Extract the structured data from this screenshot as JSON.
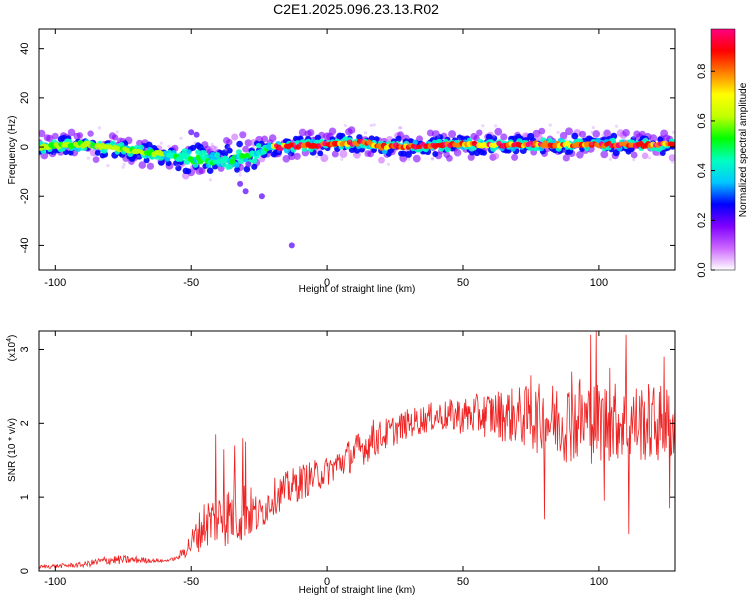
{
  "title": "C2E1.2025.096.23.13.R02",
  "chart_data": [
    {
      "type": "heatmap",
      "name": "spectrogram",
      "xlabel": "Height of straight line (km)",
      "ylabel": "Frequency (Hz)",
      "xlim": [
        -106,
        128
      ],
      "ylim": [
        -50,
        48
      ],
      "xticks": [
        -100,
        -50,
        0,
        50,
        100
      ],
      "xtick_labels": [
        "-100",
        "-50",
        "0",
        "50",
        "100"
      ],
      "yticks": [
        -40,
        -20,
        0,
        20,
        40
      ],
      "ytick_labels": [
        "-40",
        "-20",
        "0",
        "20",
        "40"
      ],
      "band_center_hz": [
        [
          -106,
          0
        ],
        [
          -90,
          1
        ],
        [
          -75,
          -1
        ],
        [
          -60,
          -3
        ],
        [
          -50,
          -5
        ],
        [
          -45,
          -5
        ],
        [
          -40,
          -6
        ],
        [
          -35,
          -5
        ],
        [
          -30,
          -4
        ],
        [
          -25,
          -2
        ],
        [
          -20,
          0
        ],
        [
          0,
          1
        ],
        [
          15,
          2
        ],
        [
          20,
          0
        ],
        [
          50,
          1
        ],
        [
          100,
          1
        ],
        [
          128,
          1
        ]
      ],
      "outlier_points": [
        [
          -29,
          -7
        ],
        [
          -32,
          -15
        ],
        [
          -30,
          -18
        ],
        [
          -50,
          6
        ],
        [
          -48,
          5
        ],
        [
          -24,
          -20
        ],
        [
          -13,
          -40
        ]
      ],
      "colorbar": {
        "label": "Normalized spectral amplitude",
        "range": [
          0,
          0.97
        ],
        "ticks": [
          0.0,
          0.2,
          0.4,
          0.6,
          0.8
        ],
        "tick_labels": [
          "0.0",
          "0.2",
          "0.4",
          "0.6",
          "0.8"
        ],
        "colormap": [
          "#ffffff",
          "#cc66ff",
          "#8000ff",
          "#0000ff",
          "#00c8ff",
          "#00ffc0",
          "#00ff00",
          "#c0ff00",
          "#ffff00",
          "#ff8000",
          "#ff0000",
          "#ff0080"
        ]
      }
    },
    {
      "type": "line",
      "name": "snr",
      "xlabel": "Height of straight line (km)",
      "ylabel": "SNR (10 * v/v)",
      "scale_note": "(x10",
      "scale_exponent": "4",
      "scale_close": ")",
      "xlim": [
        -106,
        128
      ],
      "ylim": [
        0,
        3.25
      ],
      "xticks": [
        -100,
        -50,
        0,
        50,
        100
      ],
      "xtick_labels": [
        "-100",
        "-50",
        "0",
        "50",
        "100"
      ],
      "yticks": [
        0,
        1,
        2,
        3
      ],
      "ytick_labels": [
        "0",
        "1",
        "2",
        "3"
      ],
      "line_color": "#ee2222",
      "envelope": [
        [
          -106,
          0.03,
          0.08
        ],
        [
          -90,
          0.05,
          0.12
        ],
        [
          -80,
          0.08,
          0.22
        ],
        [
          -70,
          0.1,
          0.2
        ],
        [
          -60,
          0.12,
          0.15
        ],
        [
          -55,
          0.15,
          0.2
        ],
        [
          -50,
          0.2,
          0.55
        ],
        [
          -45,
          0.3,
          1.0
        ],
        [
          -40,
          0.35,
          1.1
        ],
        [
          -35,
          0.3,
          1.2
        ],
        [
          -30,
          0.4,
          1.25
        ],
        [
          -25,
          0.5,
          1.0
        ],
        [
          -20,
          0.75,
          1.25
        ],
        [
          -10,
          0.95,
          1.45
        ],
        [
          0,
          1.15,
          1.55
        ],
        [
          10,
          1.35,
          1.85
        ],
        [
          20,
          1.6,
          2.05
        ],
        [
          30,
          1.8,
          2.2
        ],
        [
          40,
          1.9,
          2.3
        ],
        [
          50,
          1.85,
          2.35
        ],
        [
          60,
          1.8,
          2.45
        ],
        [
          70,
          1.7,
          2.5
        ],
        [
          80,
          1.55,
          2.55
        ],
        [
          90,
          1.45,
          2.6
        ],
        [
          100,
          1.45,
          2.6
        ],
        [
          110,
          1.5,
          2.55
        ],
        [
          120,
          1.45,
          2.55
        ],
        [
          128,
          1.5,
          2.5
        ]
      ],
      "notable_spikes": [
        [
          -41,
          1.85
        ],
        [
          -38,
          1.65
        ],
        [
          -34,
          1.7
        ],
        [
          -31,
          1.8
        ],
        [
          -30,
          1.75
        ],
        [
          17,
          2.05
        ],
        [
          48,
          2.3
        ],
        [
          75,
          2.65
        ],
        [
          80,
          0.7
        ],
        [
          90,
          2.7
        ],
        [
          93,
          2.6
        ],
        [
          97,
          3.2
        ],
        [
          99,
          3.25
        ],
        [
          102,
          0.95
        ],
        [
          104,
          2.75
        ],
        [
          110,
          3.2
        ],
        [
          111,
          0.5
        ],
        [
          124,
          2.9
        ],
        [
          126,
          0.85
        ]
      ]
    }
  ]
}
